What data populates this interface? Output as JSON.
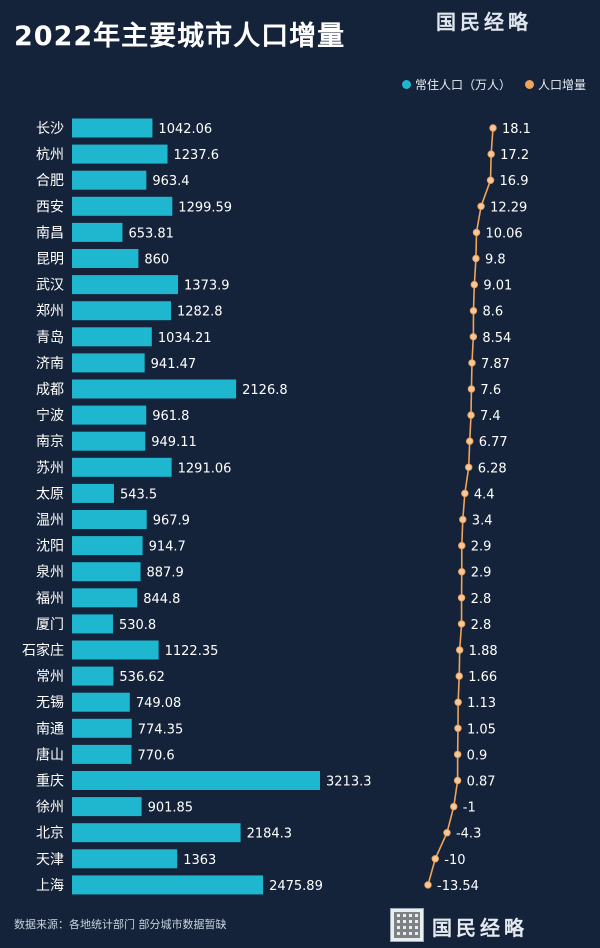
{
  "header": {
    "title": "2022年主要城市人口增量"
  },
  "brand": {
    "name": "国民经略"
  },
  "footer": {
    "source": "数据来源：各地统计部门 部分城市数据暂缺"
  },
  "colors": {
    "background": "#14233a",
    "bar": "#1fb6cf",
    "line": "#f0a35a"
  },
  "chart_data": {
    "type": "bar",
    "orientation": "horizontal",
    "categories": [
      "长沙",
      "杭州",
      "合肥",
      "西安",
      "南昌",
      "昆明",
      "武汉",
      "郑州",
      "青岛",
      "济南",
      "成都",
      "宁波",
      "南京",
      "苏州",
      "太原",
      "温州",
      "沈阳",
      "泉州",
      "福州",
      "厦门",
      "石家庄",
      "常州",
      "无锡",
      "南通",
      "唐山",
      "重庆",
      "徐州",
      "北京",
      "天津",
      "上海"
    ],
    "series": [
      {
        "name": "常住人口（万人）",
        "type": "bar",
        "values": [
          1042.06,
          1237.6,
          963.4,
          1299.59,
          653.81,
          860,
          1373.9,
          1282.8,
          1034.21,
          941.47,
          2126.8,
          961.8,
          949.11,
          1291.06,
          543.5,
          967.9,
          914.7,
          887.9,
          844.8,
          530.8,
          1122.35,
          536.62,
          749.08,
          774.35,
          770.6,
          3213.3,
          901.85,
          2184.3,
          1363,
          2475.89
        ],
        "labels": [
          "1042.06",
          "1237.6",
          "963.4",
          "1299.59",
          "653.81",
          "860",
          "1373.9",
          "1282.8",
          "1034.21",
          "941.47",
          "2126.8",
          "961.8",
          "949.11",
          "1291.06",
          "543.5",
          "967.9",
          "914.7",
          "887.9",
          "844.8",
          "530.8",
          "1122.35",
          "536.62",
          "749.08",
          "774.35",
          "770.6",
          "3213.3",
          "901.85",
          "2184.3",
          "1363",
          "2475.89"
        ]
      },
      {
        "name": "人口增量",
        "type": "line",
        "values": [
          18.1,
          17.2,
          16.9,
          12.29,
          10.06,
          9.8,
          9.01,
          8.6,
          8.54,
          7.87,
          7.6,
          7.4,
          6.77,
          6.28,
          4.4,
          3.4,
          2.9,
          2.9,
          2.8,
          2.8,
          1.88,
          1.66,
          1.13,
          1.05,
          0.9,
          0.87,
          -1,
          -4.3,
          -10,
          -13.54
        ],
        "labels": [
          "18.1",
          "17.2",
          "16.9",
          "12.29",
          "10.06",
          "9.8",
          "9.01",
          "8.6",
          "8.54",
          "7.87",
          "7.6",
          "7.4",
          "6.77",
          "6.28",
          "4.4",
          "3.4",
          "2.9",
          "2.9",
          "2.8",
          "2.8",
          "1.88",
          "1.66",
          "1.13",
          "1.05",
          "0.9",
          "0.87",
          "-1",
          "-4.3",
          "-10",
          "-13.54"
        ]
      }
    ],
    "bar_xlim": [
      0,
      3213.3
    ],
    "line_xlim": [
      -13.54,
      18.1
    ],
    "legend_position": "top-right",
    "grid": false
  }
}
